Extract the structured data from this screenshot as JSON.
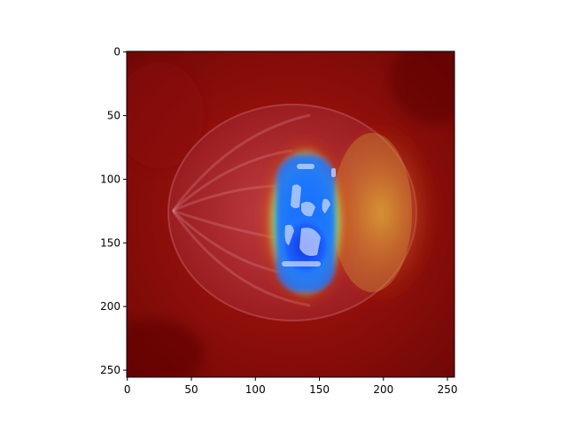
{
  "chart_data": {
    "type": "heatmap",
    "title": "",
    "xlabel": "",
    "ylabel": "",
    "xlim": [
      0,
      256
    ],
    "ylim": [
      256,
      0
    ],
    "x_ticks": [
      0,
      50,
      100,
      150,
      200,
      250
    ],
    "y_ticks": [
      0,
      50,
      100,
      150,
      200,
      250
    ],
    "grid": false,
    "legend": "none",
    "colormap": "jet overlay on photo of a halved onion",
    "hotspot_center": [
      140,
      135
    ],
    "colors": {
      "background_low": "#7a0a08",
      "hot_blue": "#1a55ff",
      "mid_yellow": "#e8d020",
      "onion_tint": "#c45a6a"
    }
  }
}
